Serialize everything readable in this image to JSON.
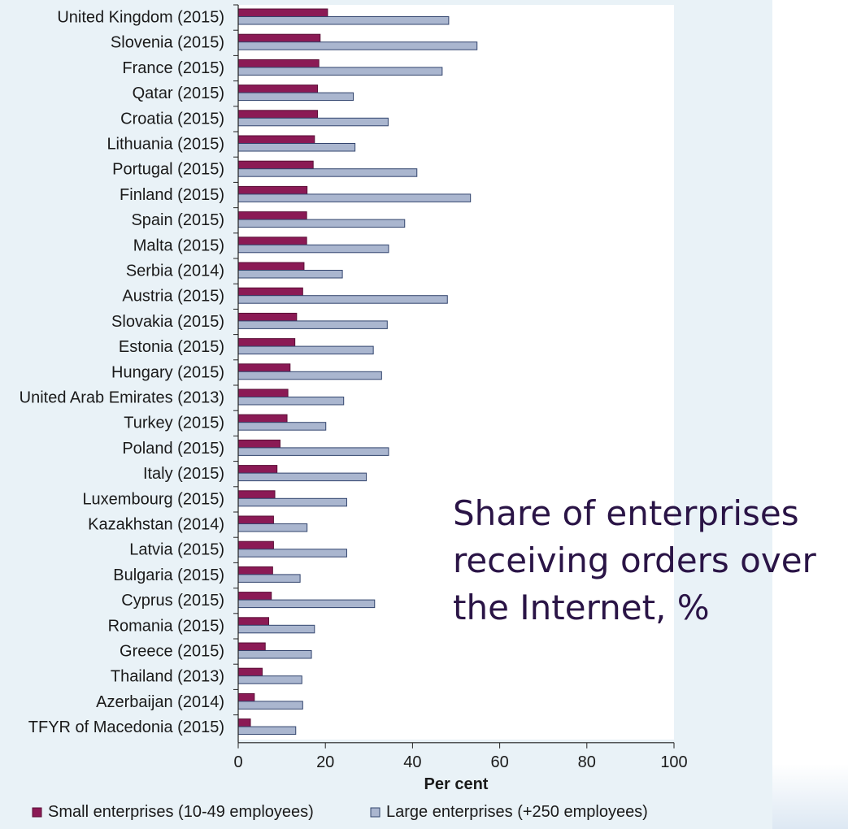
{
  "chart_data": {
    "type": "bar",
    "orientation": "horizontal",
    "title": "Share of enterprises receiving orders over the Internet, %",
    "title_lines": [
      "Share of enterprises",
      "receiving orders over",
      "the Internet, %"
    ],
    "xlabel": "Per cent",
    "ylabel": "",
    "xlim": [
      0,
      100
    ],
    "xticks": [
      "0",
      "20",
      "40",
      "60",
      "80",
      "100"
    ],
    "grid": false,
    "legend_position": "bottom",
    "categories": [
      "United Kingdom (2015)",
      "Slovenia (2015)",
      "France (2015)",
      "Qatar (2015)",
      "Croatia (2015)",
      "Lithuania (2015)",
      "Portugal (2015)",
      "Finland (2015)",
      "Spain (2015)",
      "Malta (2015)",
      "Serbia (2014)",
      "Austria (2015)",
      "Slovakia (2015)",
      "Estonia (2015)",
      "Hungary (2015)",
      "United Arab Emirates (2013)",
      "Turkey (2015)",
      "Poland (2015)",
      "Italy (2015)",
      "Luxembourg (2015)",
      "Kazakhstan (2014)",
      "Latvia (2015)",
      "Bulgaria (2015)",
      "Cyprus (2015)",
      "Romania (2015)",
      "Greece (2015)",
      "Thailand (2013)",
      "Azerbaijan (2014)",
      "TFYR of Macedonia (2015)"
    ],
    "series": [
      {
        "name": "Small enterprises (10-49 employees)",
        "color": "#8b1a55",
        "values": [
          20.5,
          18.8,
          18.5,
          18.2,
          18.2,
          17.5,
          17.2,
          15.8,
          15.7,
          15.7,
          15.1,
          14.8,
          13.4,
          13.0,
          11.9,
          11.4,
          11.2,
          9.6,
          8.9,
          8.4,
          8.1,
          8.1,
          7.9,
          7.6,
          7.0,
          6.2,
          5.5,
          3.7,
          2.8
        ]
      },
      {
        "name": "Large enterprises (+250 employees)",
        "color": "#aab6cf",
        "values": [
          48.3,
          54.8,
          46.8,
          26.4,
          34.4,
          26.8,
          41.0,
          53.3,
          38.2,
          34.5,
          23.9,
          48.0,
          34.2,
          31.0,
          32.9,
          24.2,
          20.1,
          34.5,
          29.4,
          24.9,
          15.8,
          24.9,
          14.2,
          31.3,
          17.5,
          16.8,
          14.6,
          14.8,
          13.2
        ]
      }
    ]
  },
  "colors": {
    "small": "#8b1a55",
    "small_stroke": "#5a0f36",
    "large": "#aab6cf",
    "large_stroke": "#33456e",
    "axis": "#222222"
  }
}
